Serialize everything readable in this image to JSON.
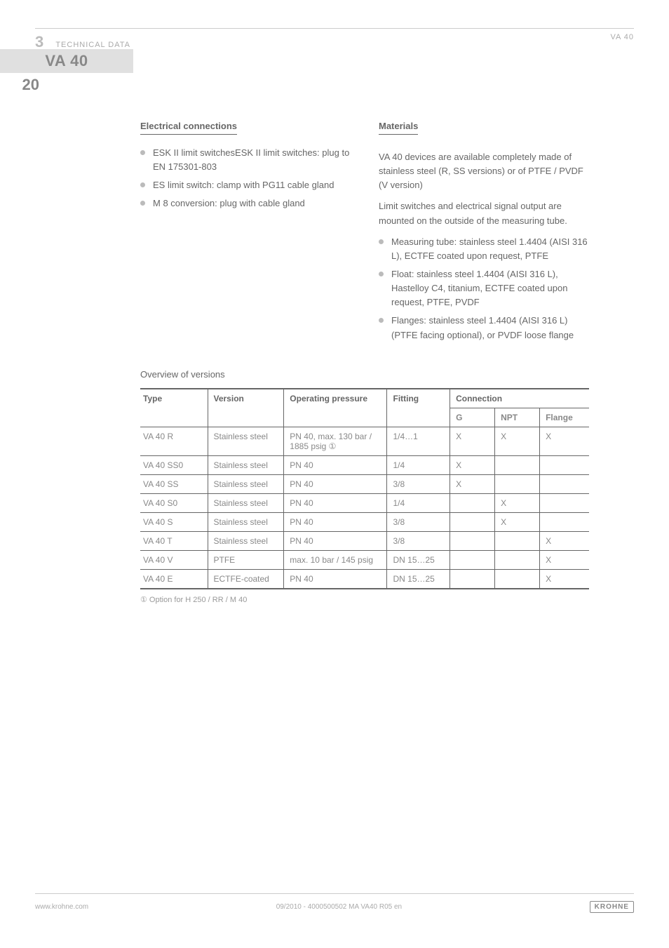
{
  "header": {
    "section_number": "3",
    "section_label": "TECHNICAL DATA",
    "product": "VA 40"
  },
  "tab_label": "VA 40",
  "page_number": "20",
  "left": {
    "heading": "Electrical connections",
    "items": [
      "ESK II limit switchesESK II limit switches: plug to EN 175301-803",
      "ES limit switch: clamp with PG11 cable gland",
      "M 8 conversion: plug with cable gland"
    ]
  },
  "right": {
    "heading": "Materials",
    "intro": "VA 40 devices are available completely made of stainless steel (R, SS versions) or of PTFE / PVDF (V version)",
    "p2": "Limit switches and electrical signal output are mounted on the outside of the measuring tube.",
    "items": [
      "Measuring tube: stainless steel 1.4404 (AISI 316 L), ECTFE coated upon request, PTFE",
      "Float: stainless steel 1.4404 (AISI 316 L), Hastelloy C4, titanium, ECTFE coated upon request, PTFE, PVDF",
      "Flanges: stainless steel 1.4404 (AISI 316 L) (PTFE facing optional), or PVDF loose flange"
    ]
  },
  "table": {
    "title": "Overview of versions",
    "headers": {
      "main": [
        "Type",
        "Version",
        "Operating pressure",
        "Fitting",
        "Connection"
      ],
      "sub": [
        "G",
        "NPT",
        "Flange"
      ]
    },
    "col_widths": [
      "15%",
      "17%",
      "23%",
      "14%",
      "10%",
      "10%",
      "11%"
    ],
    "rows": [
      [
        "VA 40 R",
        "Stainless steel",
        "PN 40, max. 130 bar / 1885 psig ①",
        "1/4…1",
        "X",
        "X",
        "X"
      ],
      [
        "VA 40 SS0",
        "Stainless steel",
        "PN 40",
        "1/4",
        "X",
        "",
        ""
      ],
      [
        "VA 40 SS",
        "Stainless steel",
        "PN 40",
        "3/8",
        "X",
        "",
        ""
      ],
      [
        "VA 40 S0",
        "Stainless steel",
        "PN 40",
        "1/4",
        "",
        "X",
        ""
      ],
      [
        "VA 40 S",
        "Stainless steel",
        "PN 40",
        "3/8",
        "",
        "X",
        ""
      ],
      [
        "VA 40 T",
        "Stainless steel",
        "PN 40",
        "3/8",
        "",
        "",
        "X"
      ],
      [
        "VA 40 V",
        "PTFE",
        "max. 10 bar / 145 psig",
        "DN 15…25",
        "",
        "",
        "X"
      ],
      [
        "VA 40 E",
        "ECTFE-coated",
        "PN 40",
        "DN 15…25",
        "",
        "",
        "X"
      ]
    ],
    "note": "① Option for H 250 / RR / M 40"
  },
  "footer": {
    "left": "www.krohne.com",
    "center": "09/2010 - 4000500502 MA VA40 R05 en",
    "logo": "KROHNE"
  }
}
